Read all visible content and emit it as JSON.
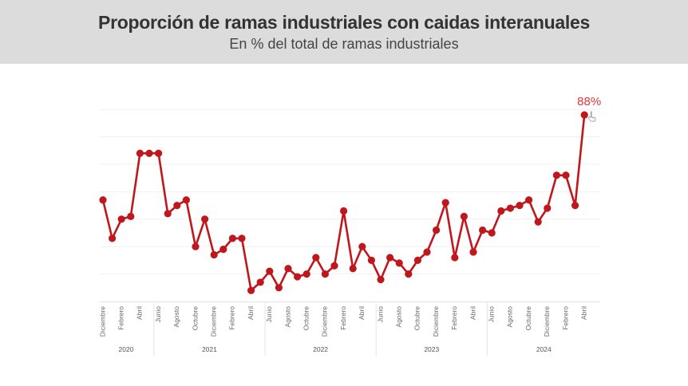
{
  "header": {
    "title": "Proporción de ramas industriales con caidas interanuales",
    "subtitle": "En % del total de ramas industriales"
  },
  "chart_data": {
    "type": "line",
    "title": "Proporción de ramas industriales con caidas interanuales",
    "subtitle": "En % del total de ramas industriales",
    "xlabel": "",
    "ylabel": "",
    "ylim": [
      20,
      95
    ],
    "grid": true,
    "line_color": "#c0171d",
    "label_color": "#d93a3a",
    "series": [
      {
        "values": [
          57,
          43,
          50,
          51,
          74,
          74,
          74,
          52,
          55,
          57,
          40,
          50,
          37,
          39,
          43,
          43,
          24,
          27,
          31,
          25,
          32,
          29,
          30,
          36,
          30,
          33,
          53,
          32,
          40,
          35,
          28,
          36,
          34,
          30,
          35,
          38,
          46,
          56,
          36,
          51,
          38,
          46,
          45,
          53,
          54,
          55,
          57,
          49,
          54,
          66,
          66,
          55,
          88
        ]
      }
    ],
    "point_label": {
      "index": 52,
      "text": "88%"
    },
    "month_ticks": [
      {
        "index": 0,
        "label": "Diciembre"
      },
      {
        "index": 2,
        "label": "Febrero"
      },
      {
        "index": 4,
        "label": "Abril"
      },
      {
        "index": 6,
        "label": "Junio"
      },
      {
        "index": 8,
        "label": "Agosto"
      },
      {
        "index": 10,
        "label": "Octubre"
      },
      {
        "index": 12,
        "label": "Diciembre"
      },
      {
        "index": 14,
        "label": "Febrero"
      },
      {
        "index": 16,
        "label": "Abril"
      },
      {
        "index": 18,
        "label": "Junio"
      },
      {
        "index": 20,
        "label": "Agosto"
      },
      {
        "index": 22,
        "label": "Octubre"
      },
      {
        "index": 24,
        "label": "Diciembre"
      },
      {
        "index": 26,
        "label": "Febrero"
      },
      {
        "index": 28,
        "label": "Abril"
      },
      {
        "index": 30,
        "label": "Junio"
      },
      {
        "index": 32,
        "label": "Agosto"
      },
      {
        "index": 34,
        "label": "Octubre"
      },
      {
        "index": 36,
        "label": "Diciembre"
      },
      {
        "index": 38,
        "label": "Febrero"
      },
      {
        "index": 40,
        "label": "Abril"
      },
      {
        "index": 42,
        "label": "Junio"
      },
      {
        "index": 44,
        "label": "Agosto"
      },
      {
        "index": 46,
        "label": "Octubre"
      },
      {
        "index": 48,
        "label": "Diciembre"
      },
      {
        "index": 50,
        "label": "Febrero"
      },
      {
        "index": 52,
        "label": "Abril"
      }
    ],
    "years": [
      {
        "label": "2020",
        "from": 0,
        "to": 6
      },
      {
        "label": "2021",
        "from": 6,
        "to": 18
      },
      {
        "label": "2022",
        "from": 18,
        "to": 30
      },
      {
        "label": "2023",
        "from": 30,
        "to": 42
      },
      {
        "label": "2024",
        "from": 42,
        "to": 46
      }
    ]
  }
}
